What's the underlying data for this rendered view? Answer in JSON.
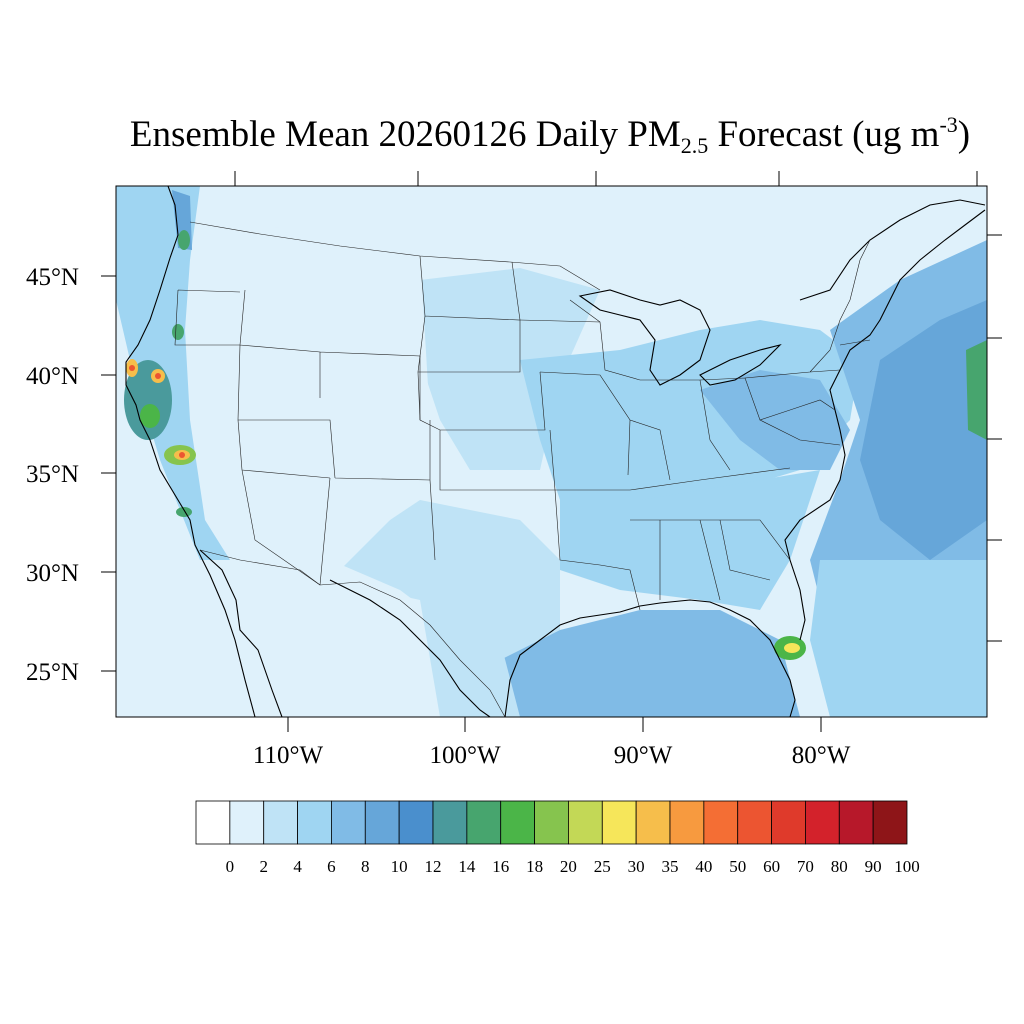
{
  "title": {
    "main": "Ensemble Mean 20260126 Daily PM",
    "sub": "2.5",
    "unit_prefix": " Forecast (ug m",
    "sup": "-3",
    "unit_suffix": ")"
  },
  "map": {
    "region": "Contiguous United States",
    "lat_labels": [
      "45°N",
      "40°N",
      "35°N",
      "30°N",
      "25°N"
    ],
    "lon_labels": [
      "110°W",
      "100°W",
      "90°W",
      "80°W"
    ]
  },
  "colorbar": {
    "labels": [
      "0",
      "2",
      "4",
      "6",
      "8",
      "10",
      "12",
      "14",
      "16",
      "18",
      "20",
      "25",
      "30",
      "35",
      "40",
      "50",
      "60",
      "70",
      "80",
      "90",
      "100"
    ],
    "colors": [
      "#ffffff",
      "#dff1fb",
      "#bfe3f6",
      "#9fd5f2",
      "#80bbe6",
      "#66a6d9",
      "#4a8fcd",
      "#4a9a9c",
      "#47a56e",
      "#4bb548",
      "#86c44e",
      "#c3d856",
      "#f6e65a",
      "#f6be4b",
      "#f79a3f",
      "#f46e34",
      "#ec5531",
      "#df3a2b",
      "#d3222b",
      "#b7182a",
      "#8e1518"
    ]
  }
}
